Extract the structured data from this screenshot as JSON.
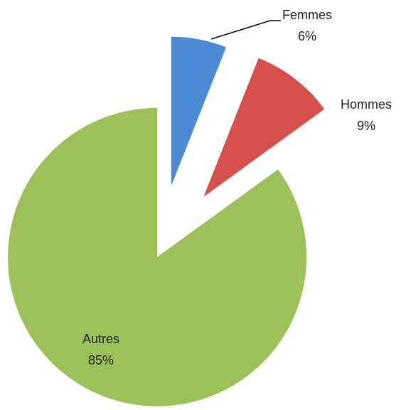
{
  "chart_data": {
    "type": "pie",
    "categories": [
      "Femmes",
      "Hommes",
      "Autres"
    ],
    "values": [
      6,
      9,
      85
    ],
    "value_labels": [
      "6%",
      "9%",
      "85%"
    ],
    "colors": [
      "#4a8bd4",
      "#d6504b",
      "#9dc15a"
    ]
  }
}
